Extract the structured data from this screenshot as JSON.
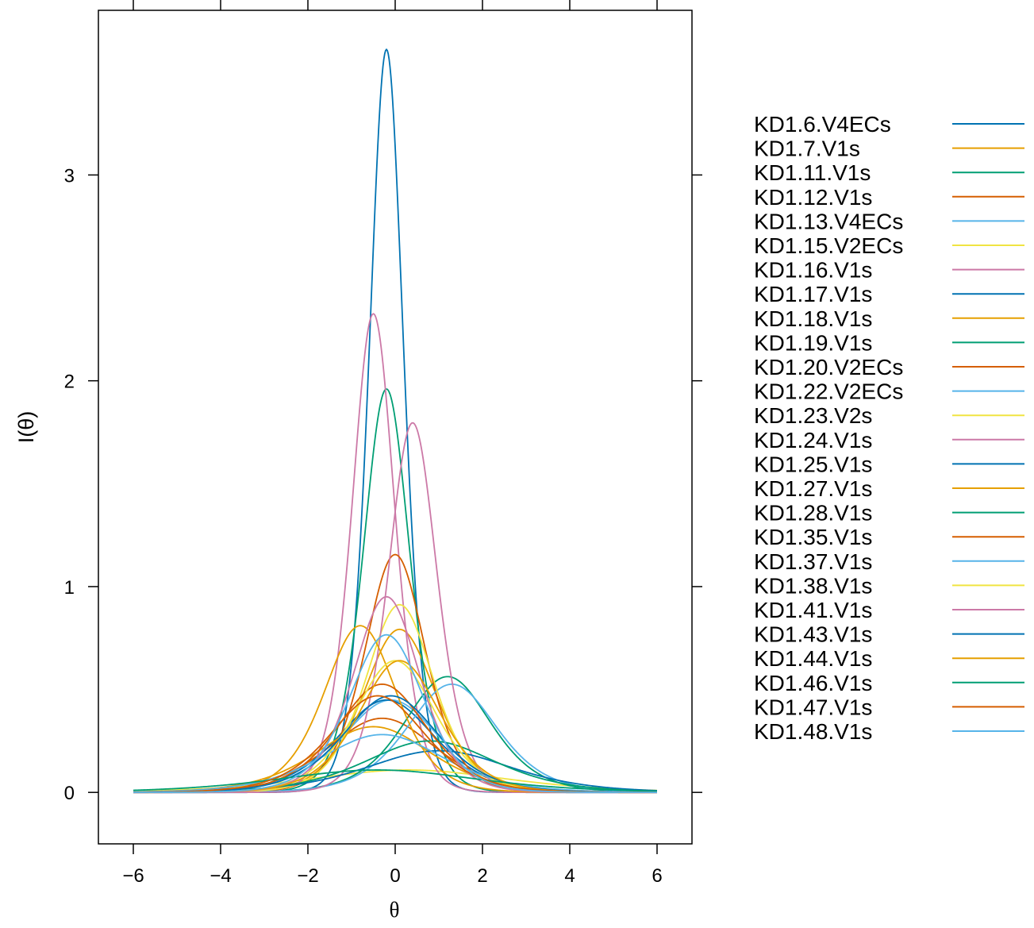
{
  "chart_data": {
    "type": "line",
    "title": "",
    "xlabel": "θ",
    "ylabel": "I(θ)",
    "xlim": [
      -6.8,
      6.8
    ],
    "ylim": [
      -0.25,
      3.8
    ],
    "x_ticks": [
      -6,
      -4,
      -2,
      0,
      2,
      4,
      6
    ],
    "y_ticks": [
      0,
      1,
      2,
      3
    ],
    "x_tick_labels": [
      "−6",
      "−4",
      "−2",
      "0",
      "2",
      "4",
      "6"
    ],
    "y_tick_labels": [
      "0",
      "1",
      "2",
      "3"
    ],
    "x_range": [
      -6,
      6
    ],
    "grid": false,
    "legend_position": "right",
    "series": [
      {
        "name": "KD1.6.V4ECs",
        "color": "#0072B2",
        "a": 3.8,
        "b": -0.2
      },
      {
        "name": "KD1.7.V1s",
        "color": "#E69F00",
        "a": 1.78,
        "b": 0.1
      },
      {
        "name": "KD1.11.V1s",
        "color": "#009E73",
        "a": 2.8,
        "b": -0.2
      },
      {
        "name": "KD1.12.V1s",
        "color": "#D55E00",
        "a": 1.2,
        "b": -0.3
      },
      {
        "name": "KD1.13.V4ECs",
        "color": "#56B4E9",
        "a": 1.34,
        "b": -0.1
      },
      {
        "name": "KD1.15.V2ECs",
        "color": "#F0E442",
        "a": 0.66,
        "b": 0.3
      },
      {
        "name": "KD1.16.V1s",
        "color": "#CC79A7",
        "a": 3.05,
        "b": -0.5
      },
      {
        "name": "KD1.17.V1s",
        "color": "#0072B2",
        "a": 1.34,
        "b": -0.2
      },
      {
        "name": "KD1.18.V1s",
        "color": "#E69F00",
        "a": 1.13,
        "b": -0.5
      },
      {
        "name": "KD1.19.V1s",
        "color": "#009E73",
        "a": 1.5,
        "b": 1.2
      },
      {
        "name": "KD1.20.V2ECs",
        "color": "#D55E00",
        "a": 2.15,
        "b": 0.0
      },
      {
        "name": "KD1.22.V2ECs",
        "color": "#56B4E9",
        "a": 1.45,
        "b": 1.3
      },
      {
        "name": "KD1.23.V2s",
        "color": "#F0E442",
        "a": 1.91,
        "b": 0.1
      },
      {
        "name": "KD1.24.V1s",
        "color": "#CC79A7",
        "a": 2.68,
        "b": 0.4
      },
      {
        "name": "KD1.25.V1s",
        "color": "#0072B2",
        "a": 0.9,
        "b": 1.0
      },
      {
        "name": "KD1.27.V1s",
        "color": "#E69F00",
        "a": 1.8,
        "b": -0.8
      },
      {
        "name": "KD1.28.V1s",
        "color": "#009E73",
        "a": 1.0,
        "b": 0.8
      },
      {
        "name": "KD1.35.V1s",
        "color": "#D55E00",
        "a": 1.45,
        "b": -0.3
      },
      {
        "name": "KD1.37.V1s",
        "color": "#56B4E9",
        "a": 1.06,
        "b": -0.3
      },
      {
        "name": "KD1.38.V1s",
        "color": "#F0E442",
        "a": 1.6,
        "b": 0.0
      },
      {
        "name": "KD1.41.V1s",
        "color": "#CC79A7",
        "a": 1.95,
        "b": -0.2
      },
      {
        "name": "KD1.43.V1s",
        "color": "#0072B2",
        "a": 1.37,
        "b": -0.1
      },
      {
        "name": "KD1.44.V1s",
        "color": "#E69F00",
        "a": 1.6,
        "b": 0.1
      },
      {
        "name": "KD1.46.V1s",
        "color": "#009E73",
        "a": 0.66,
        "b": -0.4
      },
      {
        "name": "KD1.47.V1s",
        "color": "#D55E00",
        "a": 1.37,
        "b": -0.4
      },
      {
        "name": "KD1.48.V1s",
        "color": "#56B4E9",
        "a": 1.75,
        "b": -0.2
      }
    ]
  }
}
